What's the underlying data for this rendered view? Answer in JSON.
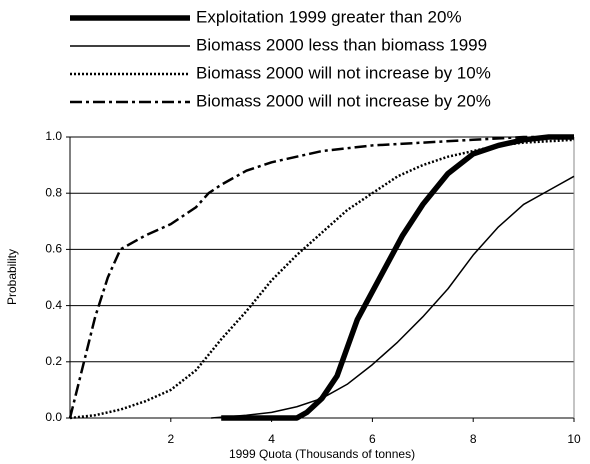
{
  "chart_data": {
    "type": "line",
    "x_label": "1999 Quota (Thousands of tonnes)",
    "y_label": "Probability",
    "xlim": [
      0,
      10
    ],
    "xticks": [
      2,
      4,
      6,
      8,
      10
    ],
    "ylim": [
      0,
      1
    ],
    "yticks": [
      {
        "value": 0,
        "label": "0.0"
      },
      {
        "value": 0.2,
        "label": "0.2"
      },
      {
        "value": 0.4,
        "label": "0.4"
      },
      {
        "value": 0.6,
        "label": "0.6"
      },
      {
        "value": 0.8,
        "label": "0.8"
      },
      {
        "value": 1,
        "label": "1.0"
      }
    ],
    "grid": true,
    "legend": "top",
    "series": [
      {
        "name": "Exploitation 1999 greater than 20%",
        "color": "#000000",
        "line_style": "thick",
        "x": [
          3,
          4.5,
          4.7,
          5.0,
          5.3,
          5.5,
          5.7,
          6.0,
          6.3,
          6.6,
          7.0,
          7.5,
          8.0,
          8.5,
          9.0,
          9.5,
          10
        ],
        "values": [
          0,
          0,
          0.02,
          0.07,
          0.15,
          0.25,
          0.35,
          0.45,
          0.55,
          0.65,
          0.76,
          0.87,
          0.94,
          0.97,
          0.99,
          1.0,
          1.0
        ]
      },
      {
        "name": "Biomass 2000 less than biomass 1999",
        "color": "#000000",
        "line_style": "solid",
        "x": [
          2.8,
          3.5,
          4,
          4.5,
          5,
          5.5,
          6,
          6.5,
          7,
          7.5,
          8,
          8.5,
          9,
          9.5,
          10
        ],
        "values": [
          0,
          0.01,
          0.02,
          0.04,
          0.07,
          0.12,
          0.19,
          0.27,
          0.36,
          0.46,
          0.58,
          0.68,
          0.76,
          0.81,
          0.86
        ]
      },
      {
        "name": "Biomass 2000 will not increase by 10%",
        "color": "#000000",
        "line_style": "dotted",
        "x": [
          0,
          0.5,
          1,
          1.5,
          2,
          2.5,
          3,
          3.5,
          4,
          4.5,
          5,
          5.5,
          6,
          6.5,
          7,
          7.5,
          8,
          8.5,
          9,
          10
        ],
        "values": [
          0,
          0.01,
          0.03,
          0.06,
          0.1,
          0.17,
          0.28,
          0.38,
          0.49,
          0.58,
          0.66,
          0.74,
          0.8,
          0.86,
          0.9,
          0.93,
          0.95,
          0.97,
          0.98,
          0.99
        ]
      },
      {
        "name": "Biomass 2000 will not increase by 20%",
        "color": "#000000",
        "line_style": "dashdot",
        "x": [
          0,
          0.25,
          0.5,
          0.75,
          1,
          1.5,
          2,
          2.5,
          2.75,
          3,
          3.5,
          4,
          5,
          6,
          7,
          8,
          9,
          10
        ],
        "values": [
          0,
          0.18,
          0.36,
          0.5,
          0.6,
          0.65,
          0.69,
          0.75,
          0.8,
          0.83,
          0.88,
          0.91,
          0.95,
          0.97,
          0.98,
          0.99,
          1.0,
          1.0
        ]
      }
    ]
  }
}
